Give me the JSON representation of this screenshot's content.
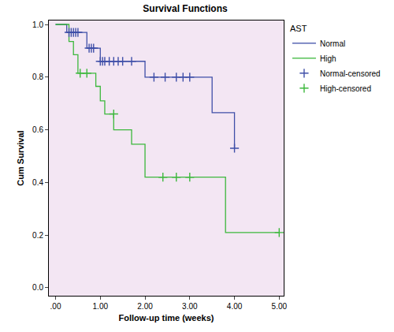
{
  "chart_data": {
    "type": "line",
    "title": "Survival Functions",
    "x_label": "Follow-up time (weeks)",
    "y_label": "Cum Survival",
    "legend_title": "AST",
    "legend": "right",
    "grid": false,
    "xlim": [
      -0.15,
      5.1
    ],
    "ylim": [
      -0.03,
      1.015
    ],
    "xticks": [
      {
        "value": 0,
        "label": ".00"
      },
      {
        "value": 1,
        "label": "1.00"
      },
      {
        "value": 2,
        "label": "2.00"
      },
      {
        "value": 3,
        "label": "3.00"
      },
      {
        "value": 4,
        "label": "4.00"
      },
      {
        "value": 5,
        "label": "5.00"
      }
    ],
    "yticks": [
      {
        "value": 0,
        "label": "0.0"
      },
      0.2,
      0.4,
      0.6,
      0.8,
      {
        "value": 1,
        "label": "1.0"
      }
    ],
    "series": [
      {
        "name": "Normal",
        "type": "line",
        "line_style": "step",
        "color": "#3f4fa8",
        "x": [
          0,
          0.25,
          0.7,
          1.0,
          2.0,
          3.5,
          4.0
        ],
        "values": [
          1.0,
          0.97,
          0.91,
          0.86,
          0.8,
          0.665,
          0.53
        ]
      },
      {
        "name": "High",
        "type": "line",
        "line_style": "step",
        "color": "#3cb83c",
        "x": [
          0,
          0.3,
          0.4,
          0.5,
          0.9,
          1.0,
          1.1,
          1.3,
          1.7,
          2.0,
          3.8,
          5.0
        ],
        "values": [
          1.0,
          0.935,
          0.885,
          0.815,
          0.765,
          0.71,
          0.66,
          0.6,
          0.545,
          0.42,
          0.21,
          0.21
        ]
      },
      {
        "name": "Normal-censored",
        "type": "scatter",
        "marker": "cross",
        "color": "#3f4fa8",
        "x": [
          0.3,
          0.35,
          0.4,
          0.45,
          0.5,
          0.75,
          0.8,
          0.85,
          1.0,
          1.05,
          1.1,
          1.2,
          1.3,
          1.4,
          1.5,
          1.7,
          2.2,
          2.45,
          2.7,
          2.85,
          3.0,
          4.0
        ],
        "values": [
          0.97,
          0.97,
          0.97,
          0.97,
          0.97,
          0.91,
          0.91,
          0.91,
          0.86,
          0.86,
          0.86,
          0.86,
          0.86,
          0.86,
          0.86,
          0.86,
          0.8,
          0.8,
          0.8,
          0.8,
          0.8,
          0.53
        ]
      },
      {
        "name": "High-censored",
        "type": "scatter",
        "marker": "cross",
        "color": "#3cb83c",
        "x": [
          0.55,
          0.7,
          1.3,
          2.4,
          2.7,
          3.0,
          5.0
        ],
        "values": [
          0.815,
          0.815,
          0.66,
          0.42,
          0.42,
          0.42,
          0.21
        ]
      }
    ]
  }
}
